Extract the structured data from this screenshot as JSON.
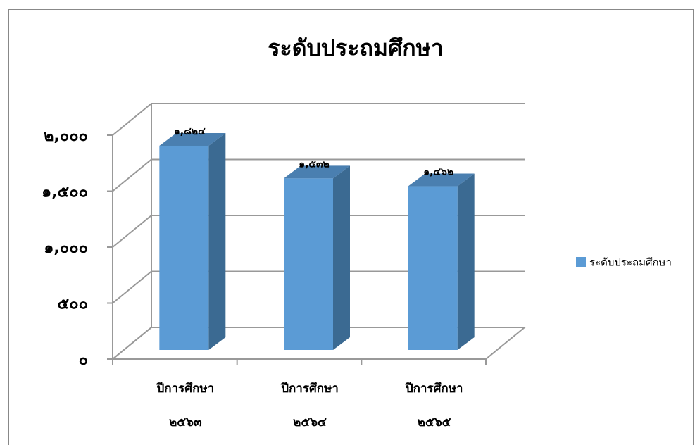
{
  "chart_data": {
    "type": "bar3d",
    "title": "ระดับประถมศึกษา",
    "categories": [
      "ปีการศึกษา\n๒๕๖๓",
      "ปีการศึกษา\n๒๕๖๔",
      "ปีการศึกษา\n๒๕๖๕"
    ],
    "series": [
      {
        "name": "ระดับประถมศึกษา",
        "color": "#5b9bd5",
        "values": [
          1824,
          1532,
          1462
        ],
        "value_labels": [
          "๑,๘๒๔",
          "๑,๕๓๒",
          "๑,๔๖๒"
        ]
      }
    ],
    "ylim": [
      0,
      2000
    ],
    "yticks": [
      {
        "value": 0,
        "label": "๐"
      },
      {
        "value": 500,
        "label": "๕๐๐"
      },
      {
        "value": 1000,
        "label": "๑,๐๐๐"
      },
      {
        "value": 1500,
        "label": "๑,๕๐๐"
      },
      {
        "value": 2000,
        "label": "๒,๐๐๐"
      }
    ],
    "grid": true,
    "legend": "right"
  }
}
